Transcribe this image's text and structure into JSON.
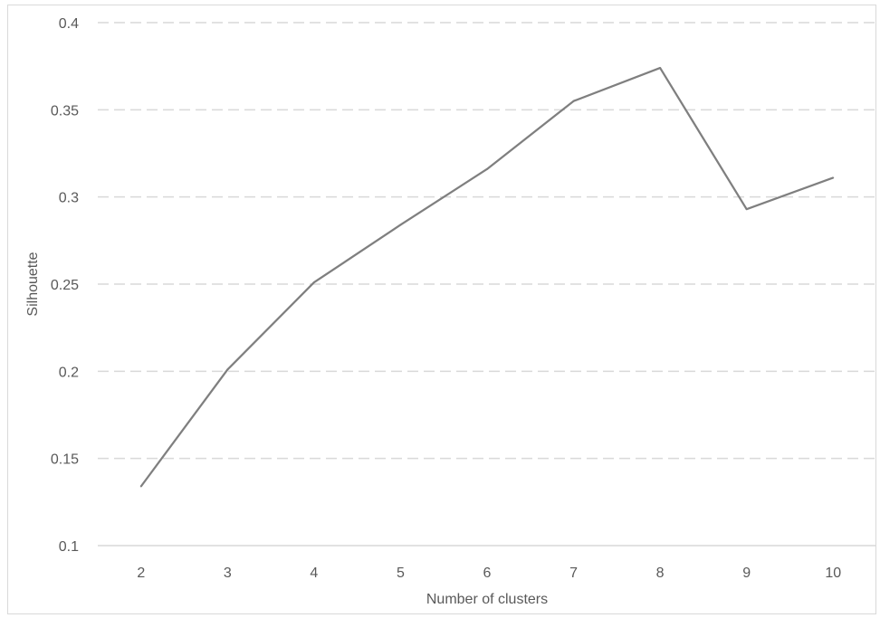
{
  "chart_data": {
    "type": "line",
    "xlabel": "Number of clusters",
    "ylabel": "Silhouette",
    "categories": [
      "2",
      "3",
      "4",
      "5",
      "6",
      "7",
      "8",
      "9",
      "10"
    ],
    "series": [
      {
        "values": [
          0.134,
          0.201,
          0.251,
          0.284,
          0.316,
          0.355,
          0.374,
          0.293,
          0.311
        ]
      }
    ],
    "ylim": [
      0.1,
      0.4
    ],
    "yticks": [
      "0.1",
      "0.15",
      "0.2",
      "0.25",
      "0.3",
      "0.35",
      "0.4"
    ],
    "grid": "horizontal dashed",
    "line_color": "#7f7f7f",
    "grid_color": "#d9d9d9",
    "legend": "none"
  }
}
